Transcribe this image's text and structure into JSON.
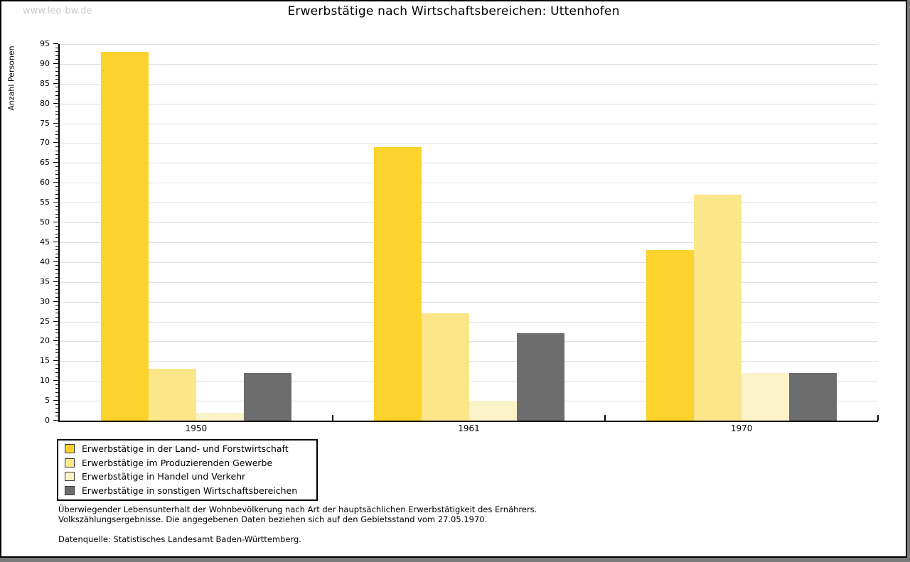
{
  "watermark": "www.leo-bw.de",
  "title": "Erwerbstätige nach Wirtschaftsbereichen: Uttenhofen",
  "chart_data": {
    "type": "bar",
    "title": "Erwerbstätige nach Wirtschaftsbereichen: Uttenhofen",
    "xlabel": "",
    "ylabel": "Anzahl Personen",
    "categories": [
      "1950",
      "1961",
      "1970"
    ],
    "series": [
      {
        "name": "Erwerbstätige in der Land- und Forstwirtschaft",
        "color": "#FCD22C",
        "values": [
          93,
          69,
          43
        ]
      },
      {
        "name": "Erwerbstätige im Produzierenden Gewerbe",
        "color": "#FBE68A",
        "values": [
          13,
          27,
          57
        ]
      },
      {
        "name": "Erwerbstätige in Handel und Verkehr",
        "color": "#FBF3C8",
        "values": [
          2,
          5,
          12
        ]
      },
      {
        "name": "Erwerbstätige in sonstigen Wirtschaftsbereichen",
        "color": "#6D6D6D",
        "values": [
          12,
          22,
          12
        ]
      }
    ],
    "ylim": [
      0,
      95
    ],
    "ytick_step": 5,
    "minor_tick_step": 1,
    "grid": true,
    "legend_position": "bottom-left"
  },
  "footnotes": {
    "line1": "Überwiegender Lebensunterhalt der Wohnbevölkerung nach Art der hauptsächlichen Erwerbstätigkeit des Ernährers.",
    "line2": "Volkszählungsergebnisse. Die angegebenen Daten beziehen sich auf den Gebietsstand vom 27.05.1970.",
    "source": "Datenquelle: Statistisches Landesamt Baden-Württemberg."
  },
  "colors": {
    "gridline": "#E0E0E0",
    "axis": "#000000",
    "watermark": "#C9C9C9",
    "frame": "#000000",
    "background": "#FFFFFF",
    "outer_background": "#7A7A7A"
  }
}
